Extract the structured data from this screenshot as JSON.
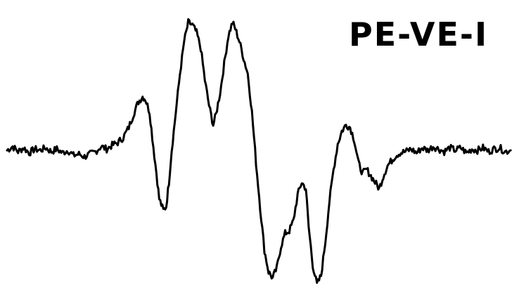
{
  "chart_data": {
    "type": "line",
    "title": "",
    "xlabel": "",
    "ylabel": "",
    "annotations": [
      "PE-VE-I"
    ],
    "grid": false,
    "legend": "none",
    "x": [
      0,
      8,
      16,
      24,
      32,
      40,
      48,
      56,
      64,
      72,
      80,
      88,
      96,
      104,
      112,
      120,
      128,
      136,
      144,
      152,
      160,
      168,
      176,
      184,
      190,
      196,
      200,
      206,
      210,
      216,
      220,
      226,
      230,
      234,
      238,
      244,
      250,
      256,
      262,
      268,
      274,
      280,
      286,
      292,
      298,
      302,
      308,
      314,
      320,
      326,
      330,
      336,
      342,
      348,
      354,
      360,
      366,
      372,
      378,
      384,
      390,
      396,
      402,
      408,
      414,
      420,
      426,
      432,
      436,
      442,
      448,
      454,
      460,
      466,
      472,
      478,
      484,
      490,
      496,
      502,
      508,
      514,
      520,
      526,
      532,
      538,
      544,
      550,
      556,
      562,
      568,
      576,
      584,
      592,
      600,
      608,
      616,
      624,
      632,
      640,
      648,
      656,
      664,
      672,
      680,
      688,
      696,
      704,
      712,
      720,
      728
    ],
    "y": [
      0.0,
      0.03,
      -0.01,
      0.02,
      -0.02,
      0.01,
      0.0,
      0.02,
      -0.01,
      0.01,
      -0.02,
      0.0,
      -0.04,
      -0.03,
      -0.05,
      -0.03,
      -0.01,
      0.03,
      0.01,
      0.04,
      0.06,
      0.1,
      0.18,
      0.3,
      0.38,
      0.42,
      0.4,
      0.3,
      0.1,
      -0.18,
      -0.38,
      -0.47,
      -0.44,
      -0.25,
      0.0,
      0.3,
      0.6,
      0.85,
      1.0,
      0.98,
      0.92,
      0.8,
      0.55,
      0.35,
      0.2,
      0.28,
      0.45,
      0.68,
      0.9,
      1.0,
      0.95,
      0.85,
      0.72,
      0.6,
      0.3,
      -0.1,
      -0.45,
      -0.78,
      -0.95,
      -1.0,
      -0.92,
      -0.75,
      -0.65,
      -0.63,
      -0.55,
      -0.35,
      -0.25,
      -0.3,
      -0.6,
      -0.9,
      -1.05,
      -0.98,
      -0.72,
      -0.4,
      -0.15,
      0.05,
      0.15,
      0.2,
      0.18,
      0.08,
      -0.1,
      -0.18,
      -0.15,
      -0.2,
      -0.25,
      -0.3,
      -0.2,
      -0.12,
      -0.08,
      -0.04,
      -0.02,
      -0.01,
      0.01,
      -0.02,
      0.02,
      0.0,
      0.03,
      0.01,
      -0.01,
      0.02,
      0.0,
      0.02,
      -0.02,
      0.01,
      0.0,
      0.02,
      -0.01,
      0.01,
      0.02,
      -0.01,
      0.0
    ],
    "xlim": [
      0,
      738
    ],
    "ylim": [
      -1.1,
      1.1
    ],
    "series": [
      {
        "color": "#000000"
      }
    ]
  }
}
